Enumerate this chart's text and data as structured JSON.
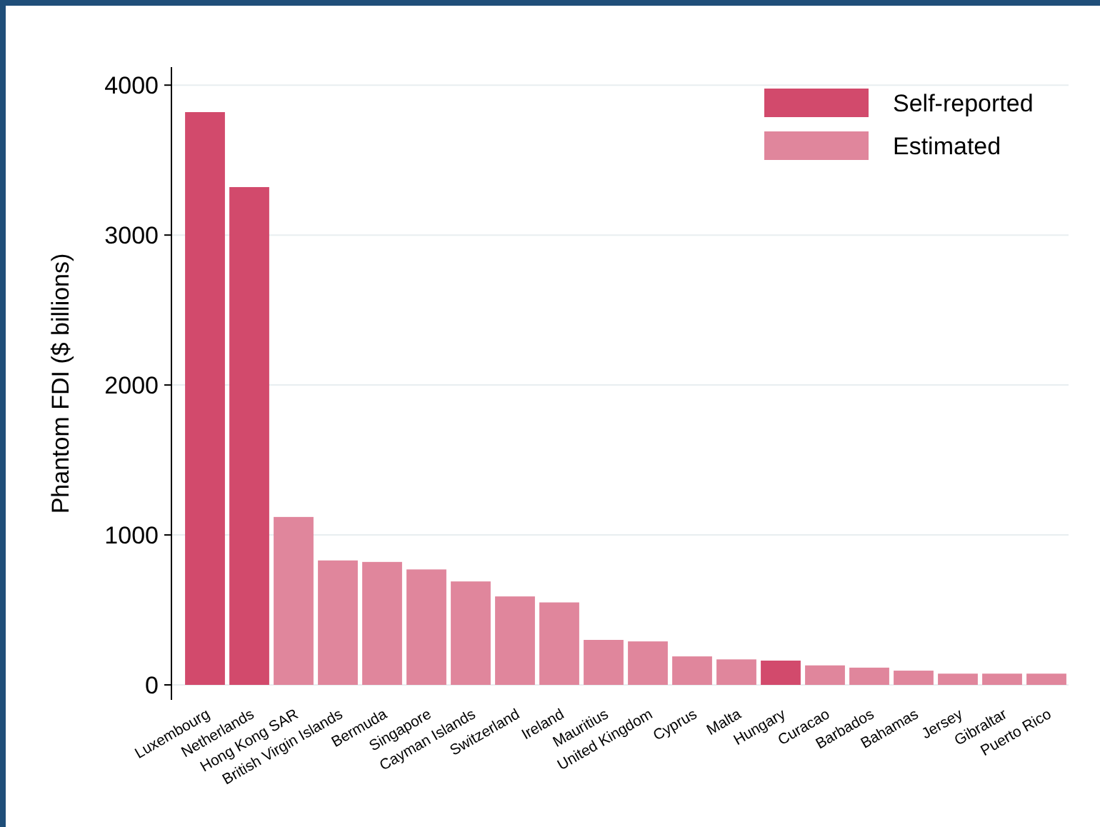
{
  "chart_data": {
    "type": "bar",
    "ylabel": "Phantom FDI ($ billions)",
    "categories": [
      "Luxembourg",
      "Netherlands",
      "Hong Kong SAR",
      "British Virgin Islands",
      "Bermuda",
      "Singapore",
      "Cayman Islands",
      "Switzerland",
      "Ireland",
      "Mauritius",
      "United Kingdom",
      "Cyprus",
      "Malta",
      "Hungary",
      "Curacao",
      "Barbados",
      "Bahamas",
      "Jersey",
      "Gibraltar",
      "Puerto Rico"
    ],
    "series": [
      {
        "name": "Self-reported",
        "color": "#d24a6c",
        "values": [
          3820,
          3320,
          null,
          null,
          null,
          null,
          null,
          null,
          null,
          null,
          null,
          null,
          null,
          162,
          null,
          null,
          null,
          null,
          null,
          null
        ]
      },
      {
        "name": "Estimated",
        "color": "#e0869c",
        "values": [
          null,
          null,
          1120,
          830,
          820,
          770,
          690,
          590,
          550,
          300,
          290,
          190,
          170,
          null,
          130,
          115,
          95,
          75,
          75,
          75
        ]
      }
    ],
    "ylim": [
      -100,
      4120
    ],
    "yticks": [
      0,
      1000,
      2000,
      3000,
      4000
    ],
    "grid": "y",
    "legend": "top right"
  }
}
